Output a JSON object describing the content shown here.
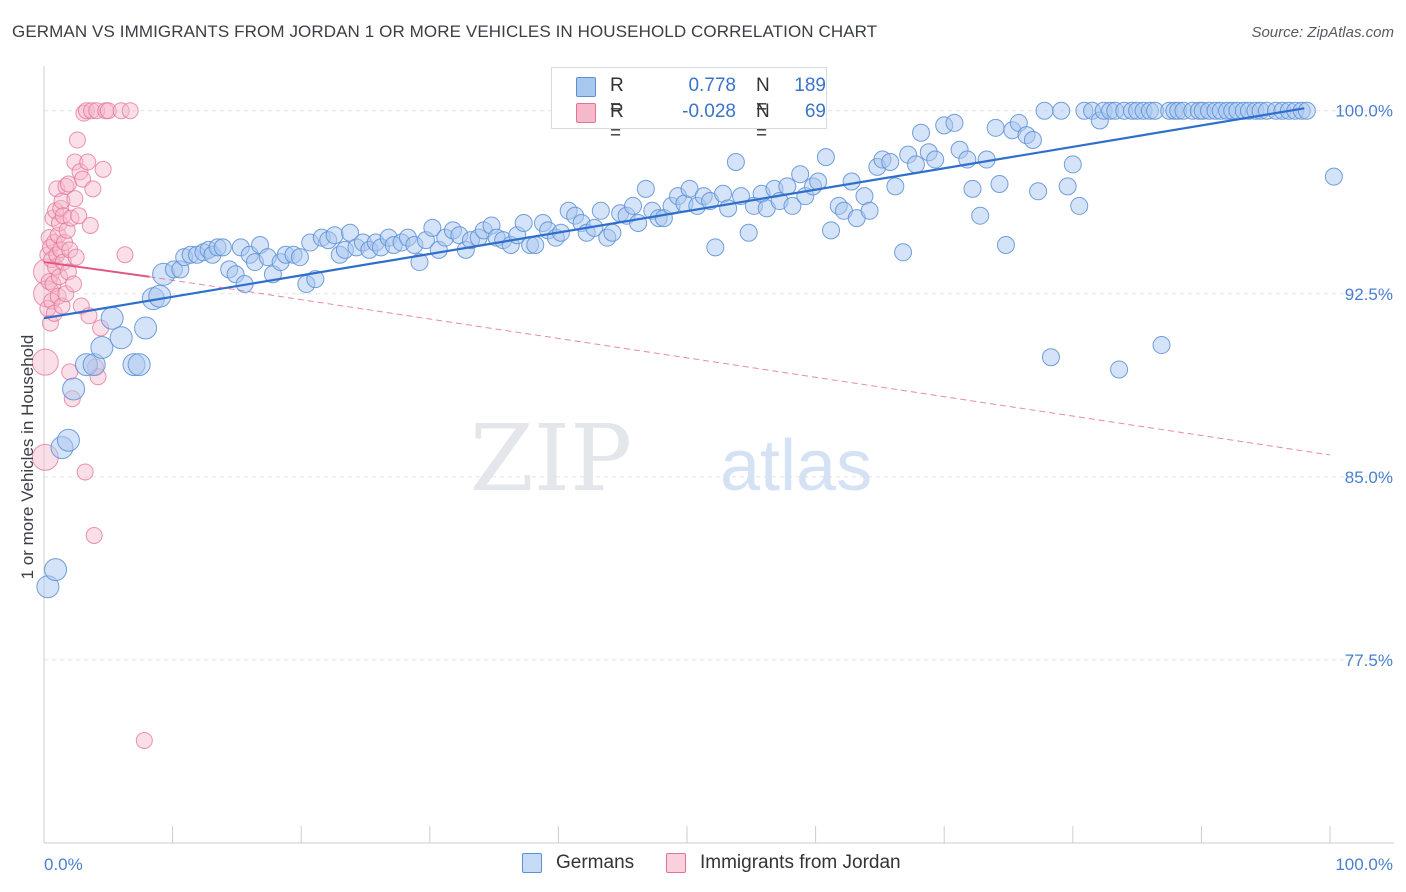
{
  "header": {
    "title": "GERMAN VS IMMIGRANTS FROM JORDAN 1 OR MORE VEHICLES IN HOUSEHOLD CORRELATION CHART",
    "source": "Source: ZipAtlas.com"
  },
  "watermark": {
    "zip": "ZIP",
    "atlas": "atlas"
  },
  "legend": {
    "r_label": "R =",
    "n_label": "N =",
    "rows": [
      {
        "r": "0.778",
        "n": "189"
      },
      {
        "r": "-0.028",
        "n": "69"
      }
    ]
  },
  "colors": {
    "germans_fill": "#a9c8f0",
    "germans_stroke": "#5b8fd6",
    "germans_line": "#2f6fcc",
    "jordan_fill": "#f6b8cb",
    "jordan_stroke": "#e17396",
    "jordan_line": "#e0577f",
    "tick_text": "#4a7fcf",
    "grid": "#dfe3e8"
  },
  "chart_data": {
    "type": "scatter",
    "title": "GERMAN VS IMMIGRANTS FROM JORDAN 1 OR MORE VEHICLES IN HOUSEHOLD CORRELATION CHART",
    "xlabel": "",
    "ylabel": "1 or more Vehicles in Household",
    "xlim": [
      0,
      100
    ],
    "ylim": [
      70.0,
      101.3
    ],
    "x_tick_labels": [
      "0.0%",
      "100.0%"
    ],
    "y_ticks": [
      100.0,
      92.5,
      85.0,
      77.5
    ],
    "y_tick_labels": [
      "100.0%",
      "92.5%",
      "85.0%",
      "77.5%"
    ],
    "grid": true,
    "legend_position": "top-center",
    "series": [
      {
        "name": "Germans",
        "R": 0.778,
        "N": 189,
        "trend": {
          "x": [
            0,
            98.0
          ],
          "y": [
            91.5,
            100.1
          ]
        },
        "points": [
          [
            0.3,
            80.5
          ],
          [
            0.9,
            81.2
          ],
          [
            1.4,
            86.2
          ],
          [
            1.9,
            86.5
          ],
          [
            2.3,
            88.6
          ],
          [
            3.3,
            89.6
          ],
          [
            3.9,
            89.6
          ],
          [
            4.5,
            90.3
          ],
          [
            5.3,
            91.5
          ],
          [
            6.0,
            90.7
          ],
          [
            7.0,
            89.6
          ],
          [
            7.4,
            89.6
          ],
          [
            7.9,
            91.1
          ],
          [
            8.5,
            92.3
          ],
          [
            9.0,
            92.4
          ],
          [
            9.3,
            93.3
          ],
          [
            10.1,
            93.5
          ],
          [
            10.6,
            93.5
          ],
          [
            10.9,
            94.0
          ],
          [
            11.4,
            94.1
          ],
          [
            11.9,
            94.1
          ],
          [
            12.4,
            94.2
          ],
          [
            12.8,
            94.3
          ],
          [
            13.1,
            94.1
          ],
          [
            13.5,
            94.4
          ],
          [
            13.9,
            94.4
          ],
          [
            14.4,
            93.5
          ],
          [
            14.9,
            93.3
          ],
          [
            15.3,
            94.4
          ],
          [
            15.6,
            92.9
          ],
          [
            16.0,
            94.1
          ],
          [
            16.4,
            93.8
          ],
          [
            16.8,
            94.5
          ],
          [
            17.4,
            94.0
          ],
          [
            17.8,
            93.3
          ],
          [
            18.4,
            93.8
          ],
          [
            18.8,
            94.1
          ],
          [
            19.4,
            94.1
          ],
          [
            19.9,
            94.0
          ],
          [
            20.4,
            92.9
          ],
          [
            20.7,
            94.6
          ],
          [
            21.1,
            93.1
          ],
          [
            21.6,
            94.8
          ],
          [
            22.1,
            94.7
          ],
          [
            22.6,
            94.9
          ],
          [
            23.0,
            94.1
          ],
          [
            23.4,
            94.3
          ],
          [
            23.8,
            95.0
          ],
          [
            24.3,
            94.4
          ],
          [
            24.8,
            94.6
          ],
          [
            25.3,
            94.3
          ],
          [
            25.8,
            94.6
          ],
          [
            26.2,
            94.4
          ],
          [
            26.8,
            94.8
          ],
          [
            27.2,
            94.5
          ],
          [
            27.8,
            94.6
          ],
          [
            28.3,
            94.8
          ],
          [
            28.8,
            94.5
          ],
          [
            29.2,
            93.8
          ],
          [
            29.7,
            94.7
          ],
          [
            30.2,
            95.2
          ],
          [
            30.7,
            94.3
          ],
          [
            31.2,
            94.8
          ],
          [
            31.8,
            95.1
          ],
          [
            32.3,
            94.9
          ],
          [
            32.8,
            94.3
          ],
          [
            33.2,
            94.7
          ],
          [
            33.8,
            94.8
          ],
          [
            34.2,
            95.1
          ],
          [
            34.8,
            95.3
          ],
          [
            35.2,
            94.8
          ],
          [
            35.7,
            94.7
          ],
          [
            36.3,
            94.5
          ],
          [
            36.8,
            94.9
          ],
          [
            37.3,
            95.4
          ],
          [
            37.8,
            94.5
          ],
          [
            38.2,
            94.5
          ],
          [
            38.8,
            95.4
          ],
          [
            39.2,
            95.1
          ],
          [
            39.8,
            94.8
          ],
          [
            40.2,
            95.0
          ],
          [
            40.8,
            95.9
          ],
          [
            41.3,
            95.7
          ],
          [
            41.8,
            95.4
          ],
          [
            42.2,
            95.0
          ],
          [
            42.8,
            95.2
          ],
          [
            43.3,
            95.9
          ],
          [
            43.8,
            94.8
          ],
          [
            44.2,
            95.0
          ],
          [
            44.8,
            95.8
          ],
          [
            45.3,
            95.7
          ],
          [
            45.8,
            96.1
          ],
          [
            46.2,
            95.4
          ],
          [
            46.8,
            96.8
          ],
          [
            47.3,
            95.9
          ],
          [
            47.8,
            95.6
          ],
          [
            48.2,
            95.6
          ],
          [
            48.8,
            96.1
          ],
          [
            49.3,
            96.5
          ],
          [
            49.8,
            96.2
          ],
          [
            50.2,
            96.8
          ],
          [
            50.8,
            96.1
          ],
          [
            51.3,
            96.5
          ],
          [
            51.8,
            96.3
          ],
          [
            52.2,
            94.4
          ],
          [
            52.8,
            96.6
          ],
          [
            53.2,
            96.0
          ],
          [
            53.8,
            97.9
          ],
          [
            54.2,
            96.5
          ],
          [
            54.8,
            95.0
          ],
          [
            55.2,
            96.1
          ],
          [
            55.8,
            96.6
          ],
          [
            56.2,
            96.0
          ],
          [
            56.8,
            96.8
          ],
          [
            57.2,
            96.3
          ],
          [
            57.8,
            96.9
          ],
          [
            58.2,
            96.1
          ],
          [
            58.8,
            97.4
          ],
          [
            59.2,
            96.5
          ],
          [
            59.8,
            96.9
          ],
          [
            60.2,
            97.1
          ],
          [
            60.8,
            98.1
          ],
          [
            61.2,
            95.1
          ],
          [
            61.8,
            96.1
          ],
          [
            62.2,
            95.9
          ],
          [
            62.8,
            97.1
          ],
          [
            63.2,
            95.6
          ],
          [
            63.8,
            96.5
          ],
          [
            64.2,
            95.9
          ],
          [
            64.8,
            97.7
          ],
          [
            65.2,
            98.0
          ],
          [
            65.8,
            97.9
          ],
          [
            66.2,
            96.9
          ],
          [
            66.8,
            94.2
          ],
          [
            67.2,
            98.2
          ],
          [
            67.8,
            97.8
          ],
          [
            68.2,
            99.1
          ],
          [
            68.8,
            98.3
          ],
          [
            69.3,
            98.0
          ],
          [
            70.0,
            99.4
          ],
          [
            70.8,
            99.5
          ],
          [
            71.2,
            98.4
          ],
          [
            71.8,
            98.0
          ],
          [
            72.2,
            96.8
          ],
          [
            72.8,
            95.7
          ],
          [
            73.3,
            98.0
          ],
          [
            74.0,
            99.3
          ],
          [
            74.3,
            97.0
          ],
          [
            74.8,
            94.5
          ],
          [
            75.3,
            99.2
          ],
          [
            75.8,
            99.5
          ],
          [
            76.4,
            99.0
          ],
          [
            76.9,
            98.8
          ],
          [
            77.3,
            96.7
          ],
          [
            77.8,
            100.0
          ],
          [
            78.3,
            89.9
          ],
          [
            79.1,
            100.0
          ],
          [
            79.6,
            96.9
          ],
          [
            80.0,
            97.8
          ],
          [
            80.5,
            96.1
          ],
          [
            80.9,
            100.0
          ],
          [
            81.5,
            100.0
          ],
          [
            82.1,
            99.6
          ],
          [
            82.4,
            100.0
          ],
          [
            82.9,
            100.0
          ],
          [
            83.3,
            100.0
          ],
          [
            83.6,
            89.4
          ],
          [
            84.0,
            100.0
          ],
          [
            84.6,
            100.0
          ],
          [
            85.0,
            100.0
          ],
          [
            85.5,
            100.0
          ],
          [
            86.0,
            100.0
          ],
          [
            86.4,
            100.0
          ],
          [
            86.9,
            90.4
          ],
          [
            87.5,
            100.0
          ],
          [
            87.9,
            100.0
          ],
          [
            88.2,
            100.0
          ],
          [
            88.6,
            100.0
          ],
          [
            89.3,
            100.0
          ],
          [
            89.8,
            100.0
          ],
          [
            90.1,
            100.0
          ],
          [
            90.6,
            100.0
          ],
          [
            91.1,
            100.0
          ],
          [
            91.5,
            100.0
          ],
          [
            92.0,
            100.0
          ],
          [
            92.4,
            100.0
          ],
          [
            92.8,
            100.0
          ],
          [
            93.3,
            100.0
          ],
          [
            93.7,
            100.0
          ],
          [
            94.2,
            100.0
          ],
          [
            94.6,
            100.0
          ],
          [
            95.1,
            100.0
          ],
          [
            95.8,
            100.0
          ],
          [
            96.3,
            100.0
          ],
          [
            96.8,
            100.0
          ],
          [
            97.3,
            100.0
          ],
          [
            97.8,
            100.0
          ],
          [
            98.2,
            100.0
          ],
          [
            100.3,
            97.3
          ]
        ]
      },
      {
        "name": "Immigrants from Jordan",
        "R": -0.028,
        "N": 69,
        "trend": {
          "x": [
            0,
            8.2,
            100
          ],
          "y": [
            93.8,
            93.2,
            85.9
          ]
        },
        "points": [
          [
            0.1,
            89.7
          ],
          [
            0.1,
            85.8
          ],
          [
            0.2,
            93.4
          ],
          [
            0.2,
            92.5
          ],
          [
            0.3,
            91.9
          ],
          [
            0.3,
            94.1
          ],
          [
            0.4,
            94.8
          ],
          [
            0.4,
            93.0
          ],
          [
            0.5,
            91.3
          ],
          [
            0.5,
            94.4
          ],
          [
            0.6,
            92.2
          ],
          [
            0.6,
            93.9
          ],
          [
            0.7,
            95.6
          ],
          [
            0.7,
            92.9
          ],
          [
            0.8,
            94.6
          ],
          [
            0.8,
            91.7
          ],
          [
            0.9,
            95.9
          ],
          [
            0.9,
            93.6
          ],
          [
            1.0,
            94.1
          ],
          [
            1.0,
            96.8
          ],
          [
            1.1,
            92.4
          ],
          [
            1.1,
            94.9
          ],
          [
            1.2,
            95.4
          ],
          [
            1.2,
            93.2
          ],
          [
            1.3,
            96.0
          ],
          [
            1.3,
            94.3
          ],
          [
            1.4,
            96.3
          ],
          [
            1.4,
            92.0
          ],
          [
            1.5,
            95.7
          ],
          [
            1.5,
            93.8
          ],
          [
            1.6,
            94.6
          ],
          [
            1.7,
            96.9
          ],
          [
            1.7,
            92.5
          ],
          [
            1.8,
            95.1
          ],
          [
            1.9,
            93.4
          ],
          [
            1.9,
            97.0
          ],
          [
            2.0,
            94.3
          ],
          [
            2.0,
            89.3
          ],
          [
            2.1,
            95.6
          ],
          [
            2.2,
            88.2
          ],
          [
            2.3,
            92.9
          ],
          [
            2.4,
            96.4
          ],
          [
            2.4,
            97.9
          ],
          [
            2.5,
            94.0
          ],
          [
            2.6,
            98.8
          ],
          [
            2.7,
            95.7
          ],
          [
            2.8,
            97.5
          ],
          [
            2.9,
            92.0
          ],
          [
            3.0,
            97.2
          ],
          [
            3.1,
            99.9
          ],
          [
            3.2,
            85.2
          ],
          [
            3.3,
            100.0
          ],
          [
            3.4,
            97.9
          ],
          [
            3.5,
            91.6
          ],
          [
            3.6,
            95.3
          ],
          [
            3.7,
            100.0
          ],
          [
            3.8,
            96.8
          ],
          [
            3.9,
            82.6
          ],
          [
            4.0,
            89.5
          ],
          [
            4.1,
            100.0
          ],
          [
            4.2,
            89.1
          ],
          [
            4.4,
            91.1
          ],
          [
            4.6,
            97.6
          ],
          [
            4.8,
            100.0
          ],
          [
            5.0,
            100.0
          ],
          [
            6.0,
            100.0
          ],
          [
            6.3,
            94.1
          ],
          [
            6.7,
            100.0
          ],
          [
            7.8,
            74.2
          ]
        ]
      }
    ]
  },
  "bottom_legend": {
    "germans": "Germans",
    "jordan": "Immigrants from Jordan"
  }
}
